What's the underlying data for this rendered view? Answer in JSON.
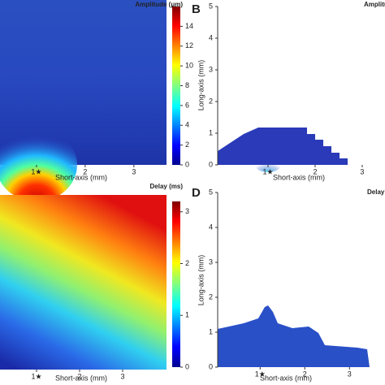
{
  "chart_data": [
    {
      "type": "heatmap",
      "panel": null,
      "title": "Amplitude (μm)",
      "x_label": "Short-axis (mm)",
      "xlim": [
        0.25,
        3.67
      ],
      "xticks": [
        {
          "value": 1,
          "label": "1★"
        },
        2,
        3
      ],
      "clim": [
        0,
        16
      ],
      "cticks": [
        0,
        2,
        4,
        6,
        8,
        10,
        12,
        14
      ]
    },
    {
      "type": "heatmap",
      "panel": "B",
      "title": "Amplitude",
      "x_label": "Short-axis (mm)",
      "y_label": "Long-axis (mm)",
      "xlim": [
        -0.07,
        3.07
      ],
      "xticks": [
        {
          "value": 1,
          "label": "1★"
        },
        2,
        3
      ],
      "ylim": [
        0,
        5
      ],
      "yticks": [
        0,
        1,
        2,
        3,
        4,
        5
      ]
    },
    {
      "type": "heatmap",
      "panel": null,
      "title": "Delay (ms)",
      "x_label": "Short-axis (mm)",
      "xlim": [
        0.15,
        4.02
      ],
      "xticks": [
        {
          "value": 1,
          "label": "1★"
        },
        2,
        3
      ],
      "clim": [
        0,
        3.2
      ],
      "cticks": [
        0,
        1,
        2,
        3
      ]
    },
    {
      "type": "heatmap",
      "panel": "D",
      "title": "Delay",
      "x_label": "Short-axis (mm)",
      "y_label": "Long-axis (mm)",
      "xlim": [
        0.05,
        3.45
      ],
      "xticks": [
        {
          "value": 1,
          "label": "1★"
        },
        2,
        3
      ],
      "ylim": [
        0,
        5
      ],
      "yticks": [
        0,
        1,
        2,
        3,
        4,
        5
      ]
    }
  ]
}
